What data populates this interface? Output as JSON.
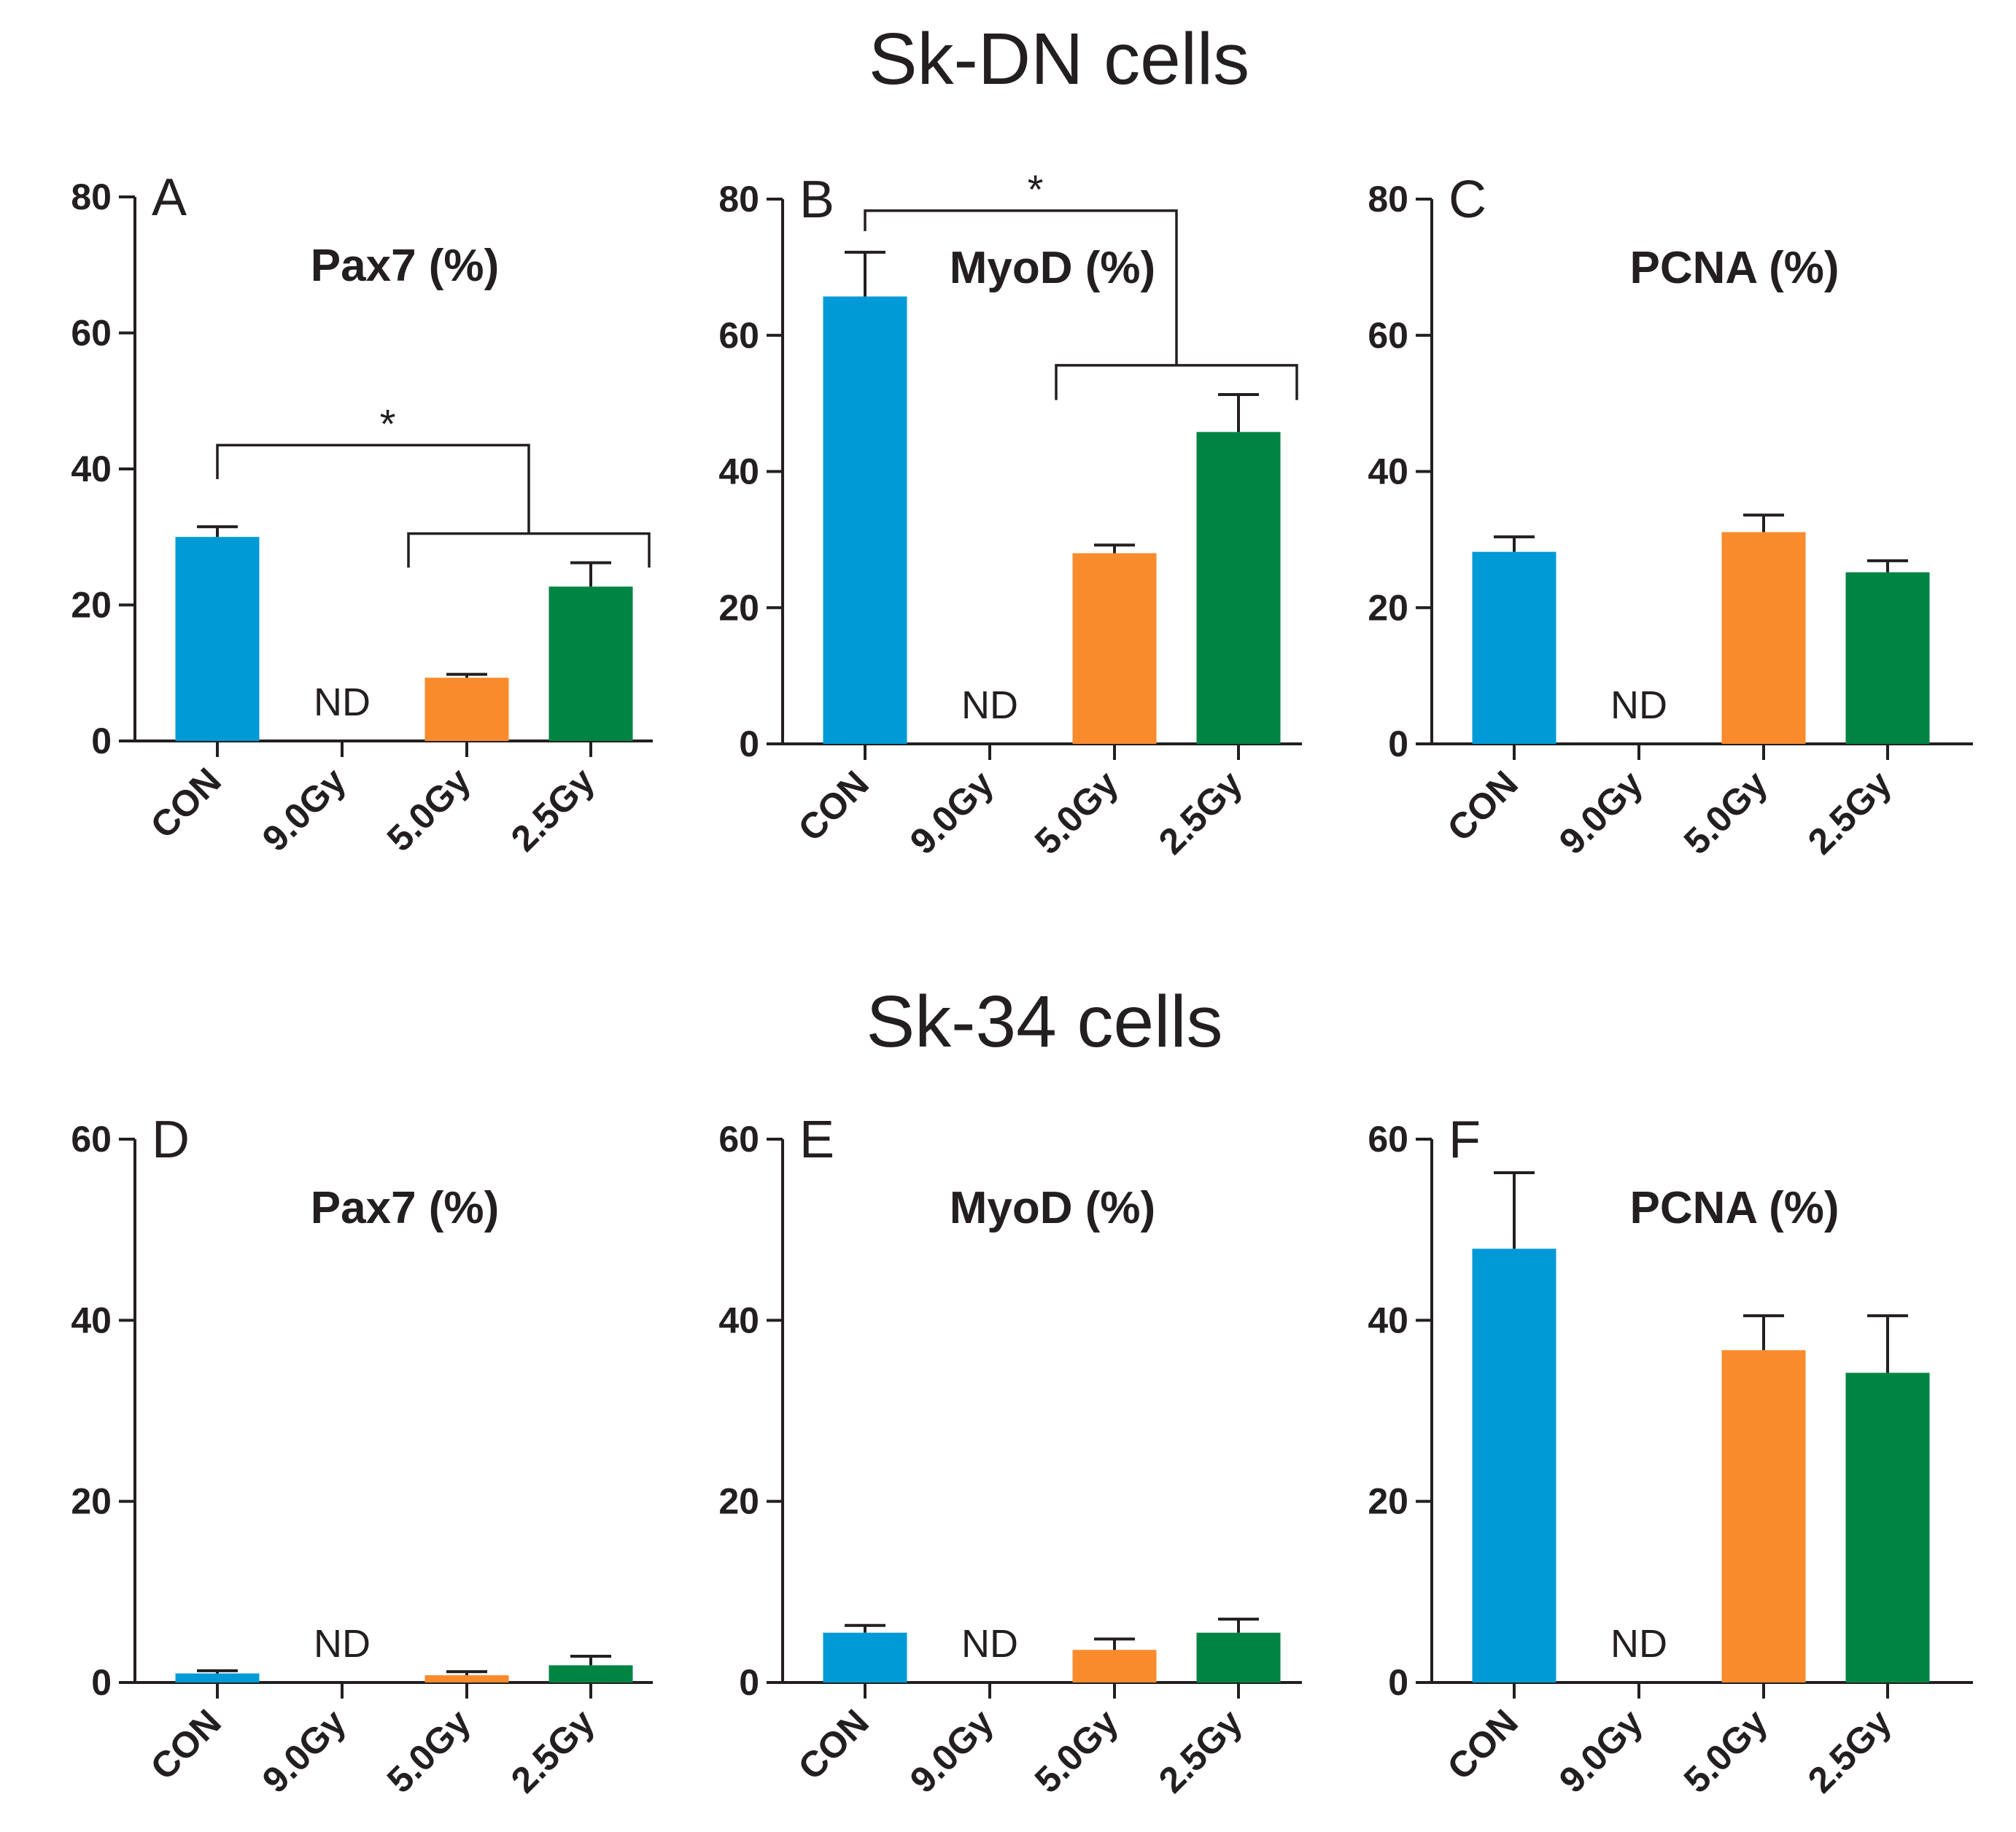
{
  "section_titles": {
    "top": "Sk-DN cells",
    "bottom": "Sk-34 cells"
  },
  "colors": {
    "CON": "#009ad7",
    "9.0Gy": "#7f7f7f",
    "5.0Gy": "#f98b2d",
    "2.5Gy": "#008443"
  },
  "chart_data": [
    {
      "id": "A",
      "letter": "A",
      "type": "bar",
      "title": "Pax7 (%)",
      "categories": [
        "CON",
        "9.0Gy",
        "5.0Gy",
        "2.5Gy"
      ],
      "values": [
        30,
        null,
        9.3,
        22.7
      ],
      "errors": [
        1.5,
        null,
        0.5,
        3.5
      ],
      "not_detected": [
        false,
        true,
        false,
        false
      ],
      "nd_text": "ND",
      "ylim": [
        0,
        80
      ],
      "yticks": [
        0,
        20,
        40,
        60,
        80
      ],
      "significance": {
        "symbol": "*",
        "from": "CON",
        "to": [
          "5.0Gy",
          "2.5Gy"
        ]
      }
    },
    {
      "id": "B",
      "letter": "B",
      "type": "bar",
      "title": "MyoD (%)",
      "categories": [
        "CON",
        "9.0Gy",
        "5.0Gy",
        "2.5Gy"
      ],
      "values": [
        65.7,
        null,
        28,
        45.8
      ],
      "errors": [
        6.5,
        null,
        1.2,
        5.5
      ],
      "not_detected": [
        false,
        true,
        false,
        false
      ],
      "nd_text": "ND",
      "ylim": [
        0,
        80
      ],
      "yticks": [
        0,
        20,
        40,
        60,
        80
      ],
      "significance": {
        "symbol": "*",
        "from": "CON",
        "to": [
          "5.0Gy",
          "2.5Gy"
        ]
      }
    },
    {
      "id": "C",
      "letter": "C",
      "type": "bar",
      "title": "PCNA (%)",
      "categories": [
        "CON",
        "9.0Gy",
        "5.0Gy",
        "2.5Gy"
      ],
      "values": [
        28.2,
        null,
        31.1,
        25.2
      ],
      "errors": [
        2.2,
        null,
        2.5,
        1.7
      ],
      "not_detected": [
        false,
        true,
        false,
        false
      ],
      "nd_text": "ND",
      "ylim": [
        0,
        80
      ],
      "yticks": [
        0,
        20,
        40,
        60,
        80
      ],
      "significance": null
    },
    {
      "id": "D",
      "letter": "D",
      "type": "bar",
      "title": "Pax7 (%)",
      "categories": [
        "CON",
        "9.0Gy",
        "5.0Gy",
        "2.5Gy"
      ],
      "values": [
        1.0,
        null,
        0.8,
        1.9
      ],
      "errors": [
        0.3,
        null,
        0.4,
        1.0
      ],
      "not_detected": [
        false,
        true,
        false,
        false
      ],
      "nd_text": "ND",
      "ylim": [
        0,
        60
      ],
      "yticks": [
        0,
        20,
        40,
        60
      ],
      "significance": null
    },
    {
      "id": "E",
      "letter": "E",
      "type": "bar",
      "title": "MyoD (%)",
      "categories": [
        "CON",
        "9.0Gy",
        "5.0Gy",
        "2.5Gy"
      ],
      "values": [
        5.5,
        null,
        3.6,
        5.5
      ],
      "errors": [
        0.8,
        null,
        1.2,
        1.5
      ],
      "not_detected": [
        false,
        true,
        false,
        false
      ],
      "nd_text": "ND",
      "ylim": [
        0,
        60
      ],
      "yticks": [
        0,
        20,
        40,
        60
      ],
      "significance": null
    },
    {
      "id": "F",
      "letter": "F",
      "type": "bar",
      "title": "PCNA (%)",
      "categories": [
        "CON",
        "9.0Gy",
        "5.0Gy",
        "2.5Gy"
      ],
      "values": [
        47.9,
        null,
        36.7,
        34.2
      ],
      "errors": [
        8.4,
        null,
        3.8,
        6.3
      ],
      "not_detected": [
        false,
        true,
        false,
        false
      ],
      "nd_text": "ND",
      "ylim": [
        0,
        60
      ],
      "yticks": [
        0,
        20,
        40,
        60
      ],
      "significance": null
    }
  ]
}
